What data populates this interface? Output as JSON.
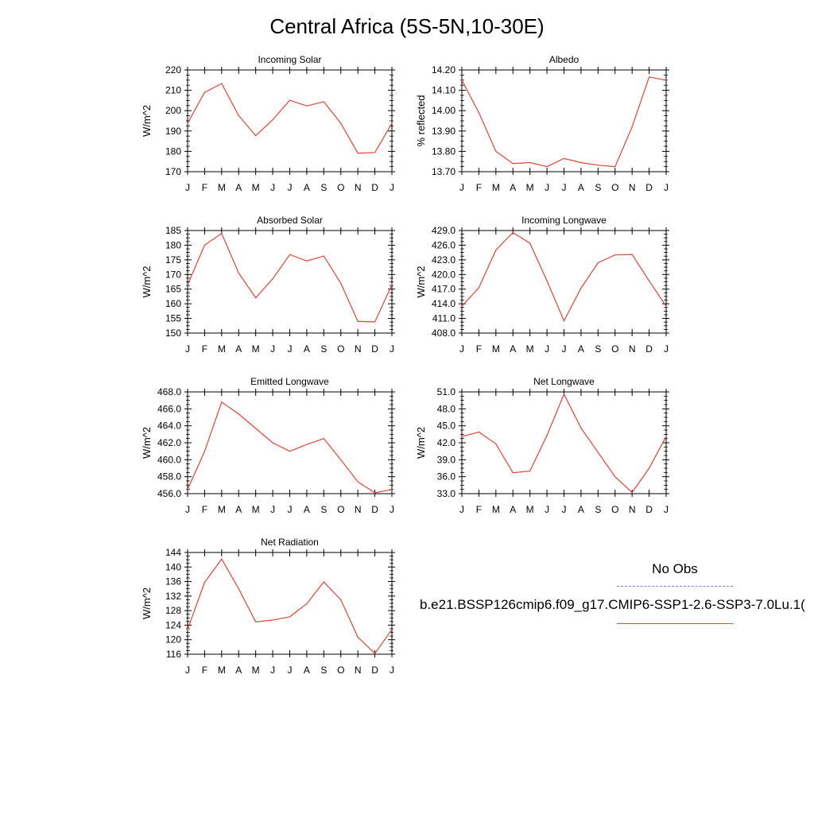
{
  "figure_title": "Central Africa (5S-5N,10-30E)",
  "legend": {
    "items": [
      {
        "label": "No Obs",
        "color": "#7b7be0",
        "style": "dashed"
      },
      {
        "label": "b.e21.BSSP126cmip6.f09_g17.CMIP6-SSP1-2.6-SSP3-7.0Lu.1(",
        "color": "#e0453a",
        "style": "solid"
      }
    ]
  },
  "line_color": "#e0453a",
  "chart_data": [
    {
      "type": "line",
      "title": "Incoming Solar",
      "ylabel": "W/m^2",
      "xlabel": "",
      "categories": [
        "J",
        "F",
        "M",
        "A",
        "M",
        "J",
        "J",
        "A",
        "S",
        "O",
        "N",
        "D",
        "J"
      ],
      "ylim": [
        170,
        220
      ],
      "yticks": [
        170,
        180,
        190,
        200,
        210,
        220
      ],
      "ytick_labels": [
        "170",
        "180",
        "190",
        "200",
        "210",
        "220"
      ],
      "series": [
        {
          "values": [
            193.8,
            209.0,
            213.3,
            197.6,
            187.7,
            195.5,
            205.1,
            202.3,
            204.4,
            193.8,
            179.1,
            179.4,
            193.8
          ]
        }
      ]
    },
    {
      "type": "line",
      "title": "Albedo",
      "ylabel": "% reflected",
      "xlabel": "",
      "categories": [
        "J",
        "F",
        "M",
        "A",
        "M",
        "J",
        "J",
        "A",
        "S",
        "O",
        "N",
        "D",
        "J"
      ],
      "ylim": [
        13.7,
        14.2
      ],
      "yticks": [
        13.7,
        13.8,
        13.9,
        14.0,
        14.1,
        14.2
      ],
      "ytick_labels": [
        "13.70",
        "13.80",
        "13.90",
        "14.00",
        "14.10",
        "14.20"
      ],
      "series": [
        {
          "values": [
            14.15,
            13.99,
            13.8,
            13.74,
            13.745,
            13.725,
            13.765,
            13.745,
            13.732,
            13.725,
            13.92,
            14.165,
            14.15
          ]
        }
      ]
    },
    {
      "type": "line",
      "title": "Absorbed Solar",
      "ylabel": "W/m^2",
      "xlabel": "",
      "categories": [
        "J",
        "F",
        "M",
        "A",
        "M",
        "J",
        "J",
        "A",
        "S",
        "O",
        "N",
        "D",
        "J"
      ],
      "ylim": [
        150,
        185
      ],
      "yticks": [
        150,
        155,
        160,
        165,
        170,
        175,
        180,
        185
      ],
      "ytick_labels": [
        "150",
        "155",
        "160",
        "165",
        "170",
        "175",
        "180",
        "185"
      ],
      "series": [
        {
          "values": [
            166.5,
            180.0,
            184.0,
            170.5,
            162.0,
            168.5,
            176.8,
            174.6,
            176.3,
            167.0,
            154.0,
            153.8,
            166.5
          ]
        }
      ]
    },
    {
      "type": "line",
      "title": "Incoming Longwave",
      "ylabel": "W/m^2",
      "xlabel": "",
      "categories": [
        "J",
        "F",
        "M",
        "A",
        "M",
        "J",
        "J",
        "A",
        "S",
        "O",
        "N",
        "D",
        "J"
      ],
      "ylim": [
        408,
        429
      ],
      "yticks": [
        408,
        411,
        414,
        417,
        420,
        423,
        426,
        429
      ],
      "ytick_labels": [
        "408.0",
        "411.0",
        "414.0",
        "417.0",
        "420.0",
        "423.0",
        "426.0",
        "429.0"
      ],
      "series": [
        {
          "values": [
            413.5,
            417.3,
            425.0,
            428.6,
            426.4,
            418.7,
            410.5,
            417.2,
            422.4,
            424.0,
            424.1,
            418.7,
            413.5
          ]
        }
      ]
    },
    {
      "type": "line",
      "title": "Emitted Longwave",
      "ylabel": "W/m^2",
      "xlabel": "",
      "categories": [
        "J",
        "F",
        "M",
        "A",
        "M",
        "J",
        "J",
        "A",
        "S",
        "O",
        "N",
        "D",
        "J"
      ],
      "ylim": [
        456,
        468
      ],
      "yticks": [
        456,
        458,
        460,
        462,
        464,
        466,
        468
      ],
      "ytick_labels": [
        "456.0",
        "458.0",
        "460.0",
        "462.0",
        "464.0",
        "466.0",
        "468.0"
      ],
      "series": [
        {
          "values": [
            456.5,
            461.0,
            466.8,
            465.4,
            463.7,
            462.0,
            461.0,
            461.8,
            462.5,
            460.0,
            457.4,
            456.1,
            456.5
          ]
        }
      ]
    },
    {
      "type": "line",
      "title": "Net Longwave",
      "ylabel": "W/m^2",
      "xlabel": "",
      "categories": [
        "J",
        "F",
        "M",
        "A",
        "M",
        "J",
        "J",
        "A",
        "S",
        "O",
        "N",
        "D",
        "J"
      ],
      "ylim": [
        33,
        51
      ],
      "yticks": [
        33,
        36,
        39,
        42,
        45,
        48,
        51
      ],
      "ytick_labels": [
        "33.0",
        "36.0",
        "39.0",
        "42.0",
        "45.0",
        "48.0",
        "51.0"
      ],
      "series": [
        {
          "values": [
            43.1,
            43.9,
            41.8,
            36.7,
            37.0,
            43.3,
            50.6,
            44.6,
            40.3,
            36.0,
            33.2,
            37.5,
            43.1
          ]
        }
      ]
    },
    {
      "type": "line",
      "title": "Net Radiation",
      "ylabel": "W/m^2",
      "xlabel": "",
      "categories": [
        "J",
        "F",
        "M",
        "A",
        "M",
        "J",
        "J",
        "A",
        "S",
        "O",
        "N",
        "D",
        "J"
      ],
      "ylim": [
        116,
        144
      ],
      "yticks": [
        116,
        120,
        124,
        128,
        132,
        136,
        140,
        144
      ],
      "ytick_labels": [
        "116",
        "120",
        "124",
        "128",
        "132",
        "136",
        "140",
        "144"
      ],
      "series": [
        {
          "values": [
            122.8,
            135.8,
            142.2,
            134.0,
            124.9,
            125.4,
            126.3,
            129.9,
            135.9,
            131.0,
            120.7,
            116.2,
            122.8
          ]
        }
      ]
    }
  ]
}
